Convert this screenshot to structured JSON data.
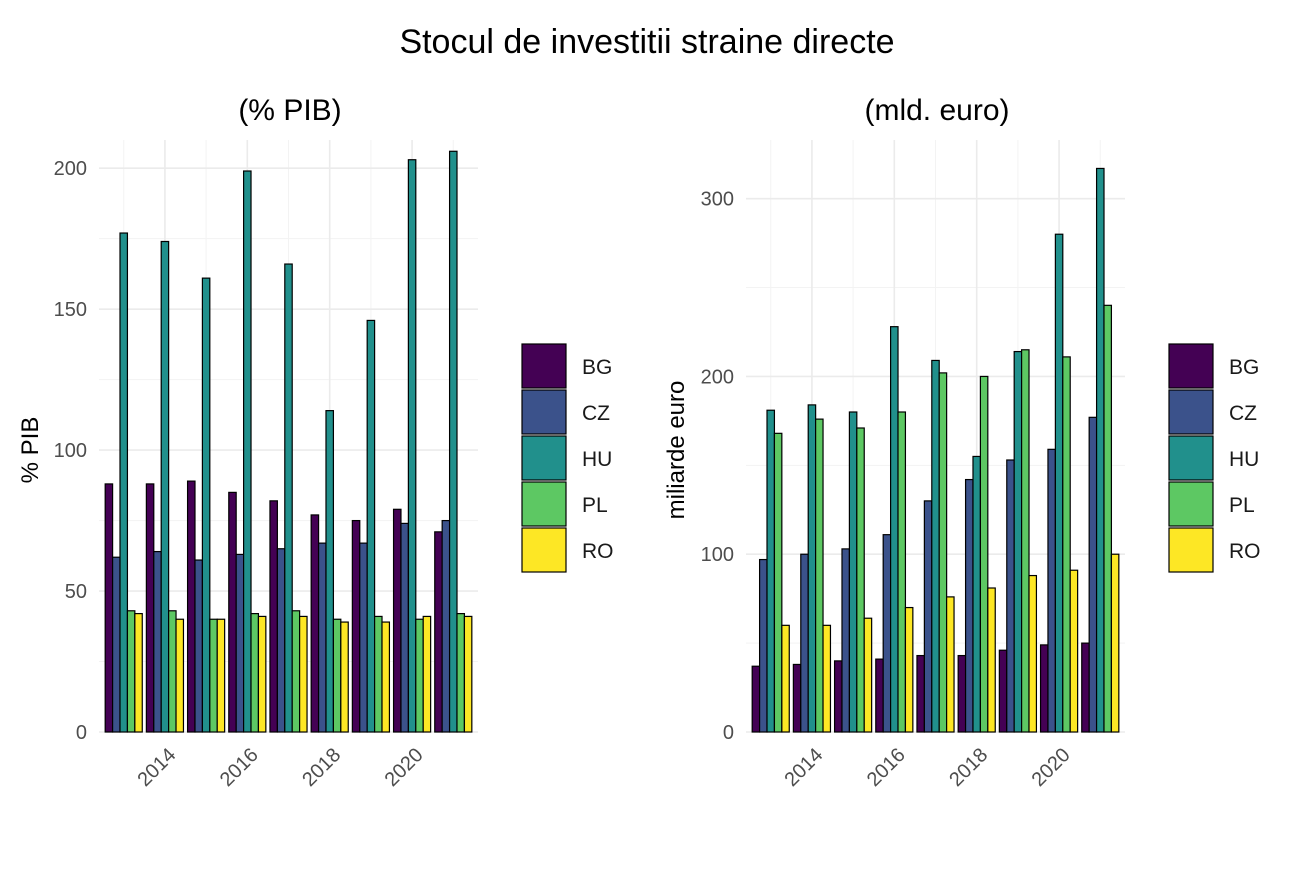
{
  "title": "Stocul de investitii straine directe",
  "chart_data": [
    {
      "type": "bar",
      "title": "(% PIB)",
      "xlabel": "",
      "ylabel": "% PIB",
      "ylim": [
        0,
        210
      ],
      "y_ticks": [
        0,
        50,
        100,
        150,
        200
      ],
      "x_ticks": [
        2014,
        2016,
        2018,
        2020
      ],
      "categories": [
        2013,
        2014,
        2015,
        2016,
        2017,
        2018,
        2019,
        2020,
        2021
      ],
      "series": [
        {
          "name": "BG",
          "color": "#440154",
          "values": [
            88,
            88,
            89,
            85,
            82,
            77,
            75,
            79,
            71
          ]
        },
        {
          "name": "CZ",
          "color": "#3B528B",
          "values": [
            62,
            64,
            61,
            63,
            65,
            67,
            67,
            74,
            75
          ]
        },
        {
          "name": "HU",
          "color": "#21908C",
          "values": [
            177,
            174,
            161,
            199,
            166,
            114,
            146,
            203,
            206
          ]
        },
        {
          "name": "PL",
          "color": "#5DC863",
          "values": [
            43,
            43,
            40,
            42,
            43,
            40,
            41,
            40,
            42
          ]
        },
        {
          "name": "RO",
          "color": "#FDE725",
          "values": [
            42,
            40,
            40,
            41,
            41,
            39,
            39,
            41,
            41
          ]
        }
      ],
      "legend": {
        "position": "right",
        "entries": [
          "BG",
          "CZ",
          "HU",
          "PL",
          "RO"
        ]
      },
      "grid": true
    },
    {
      "type": "bar",
      "title": "(mld. euro)",
      "xlabel": "",
      "ylabel": "miliarde euro",
      "ylim": [
        0,
        333
      ],
      "y_ticks": [
        0,
        100,
        200,
        300
      ],
      "x_ticks": [
        2014,
        2016,
        2018,
        2020
      ],
      "categories": [
        2013,
        2014,
        2015,
        2016,
        2017,
        2018,
        2019,
        2020,
        2021
      ],
      "series": [
        {
          "name": "BG",
          "color": "#440154",
          "values": [
            37,
            38,
            40,
            41,
            43,
            43,
            46,
            49,
            50
          ]
        },
        {
          "name": "CZ",
          "color": "#3B528B",
          "values": [
            97,
            100,
            103,
            111,
            130,
            142,
            153,
            159,
            177
          ]
        },
        {
          "name": "HU",
          "color": "#21908C",
          "values": [
            181,
            184,
            180,
            228,
            209,
            155,
            214,
            280,
            317
          ]
        },
        {
          "name": "PL",
          "color": "#5DC863",
          "values": [
            168,
            176,
            171,
            180,
            202,
            200,
            215,
            211,
            240
          ]
        },
        {
          "name": "RO",
          "color": "#FDE725",
          "values": [
            60,
            60,
            64,
            70,
            76,
            81,
            88,
            91,
            100
          ]
        }
      ],
      "legend": {
        "position": "right",
        "entries": [
          "BG",
          "CZ",
          "HU",
          "PL",
          "RO"
        ]
      },
      "grid": true
    }
  ]
}
